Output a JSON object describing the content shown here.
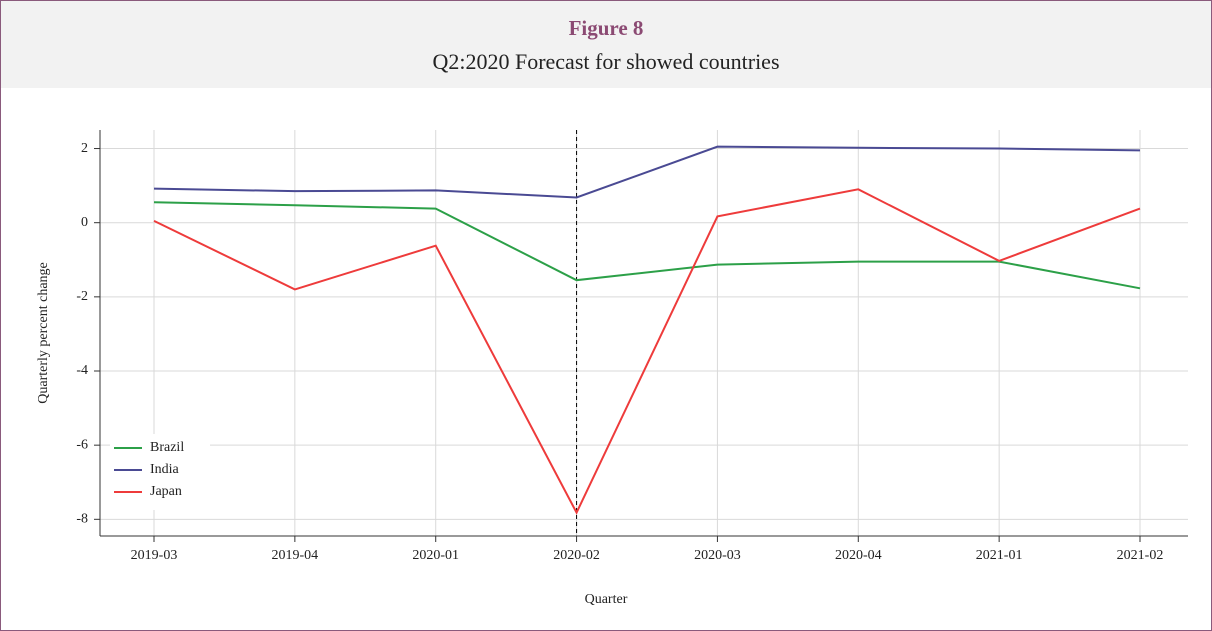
{
  "chart_data": {
    "type": "line",
    "title": "Figure 8",
    "subtitle": "Q2:2020 Forecast for showed countries",
    "x_label": "Quarter",
    "y_label": "Quarterly percent change",
    "categories": [
      "2019-03",
      "2019-04",
      "2020-01",
      "2020-02",
      "2020-03",
      "2020-04",
      "2021-01",
      "2021-02"
    ],
    "series": [
      {
        "name": "Brazil",
        "color": "#2ca048",
        "values": [
          0.55,
          0.47,
          0.38,
          -1.55,
          -1.13,
          -1.05,
          -1.05,
          -1.77
        ]
      },
      {
        "name": "India",
        "color": "#4a4a93",
        "values": [
          0.92,
          0.85,
          0.87,
          0.68,
          2.05,
          2.02,
          2.0,
          1.95
        ]
      },
      {
        "name": "Japan",
        "color": "#ee3b3b",
        "values": [
          0.05,
          -1.8,
          -0.62,
          -7.82,
          0.17,
          0.9,
          -1.03,
          0.38
        ]
      }
    ],
    "ylim": [
      -8.45,
      2.5
    ],
    "yticks": [
      -8,
      -6,
      -4,
      -2,
      0,
      2
    ],
    "grid": true,
    "legend": "lower left",
    "vline": "2020-02"
  }
}
